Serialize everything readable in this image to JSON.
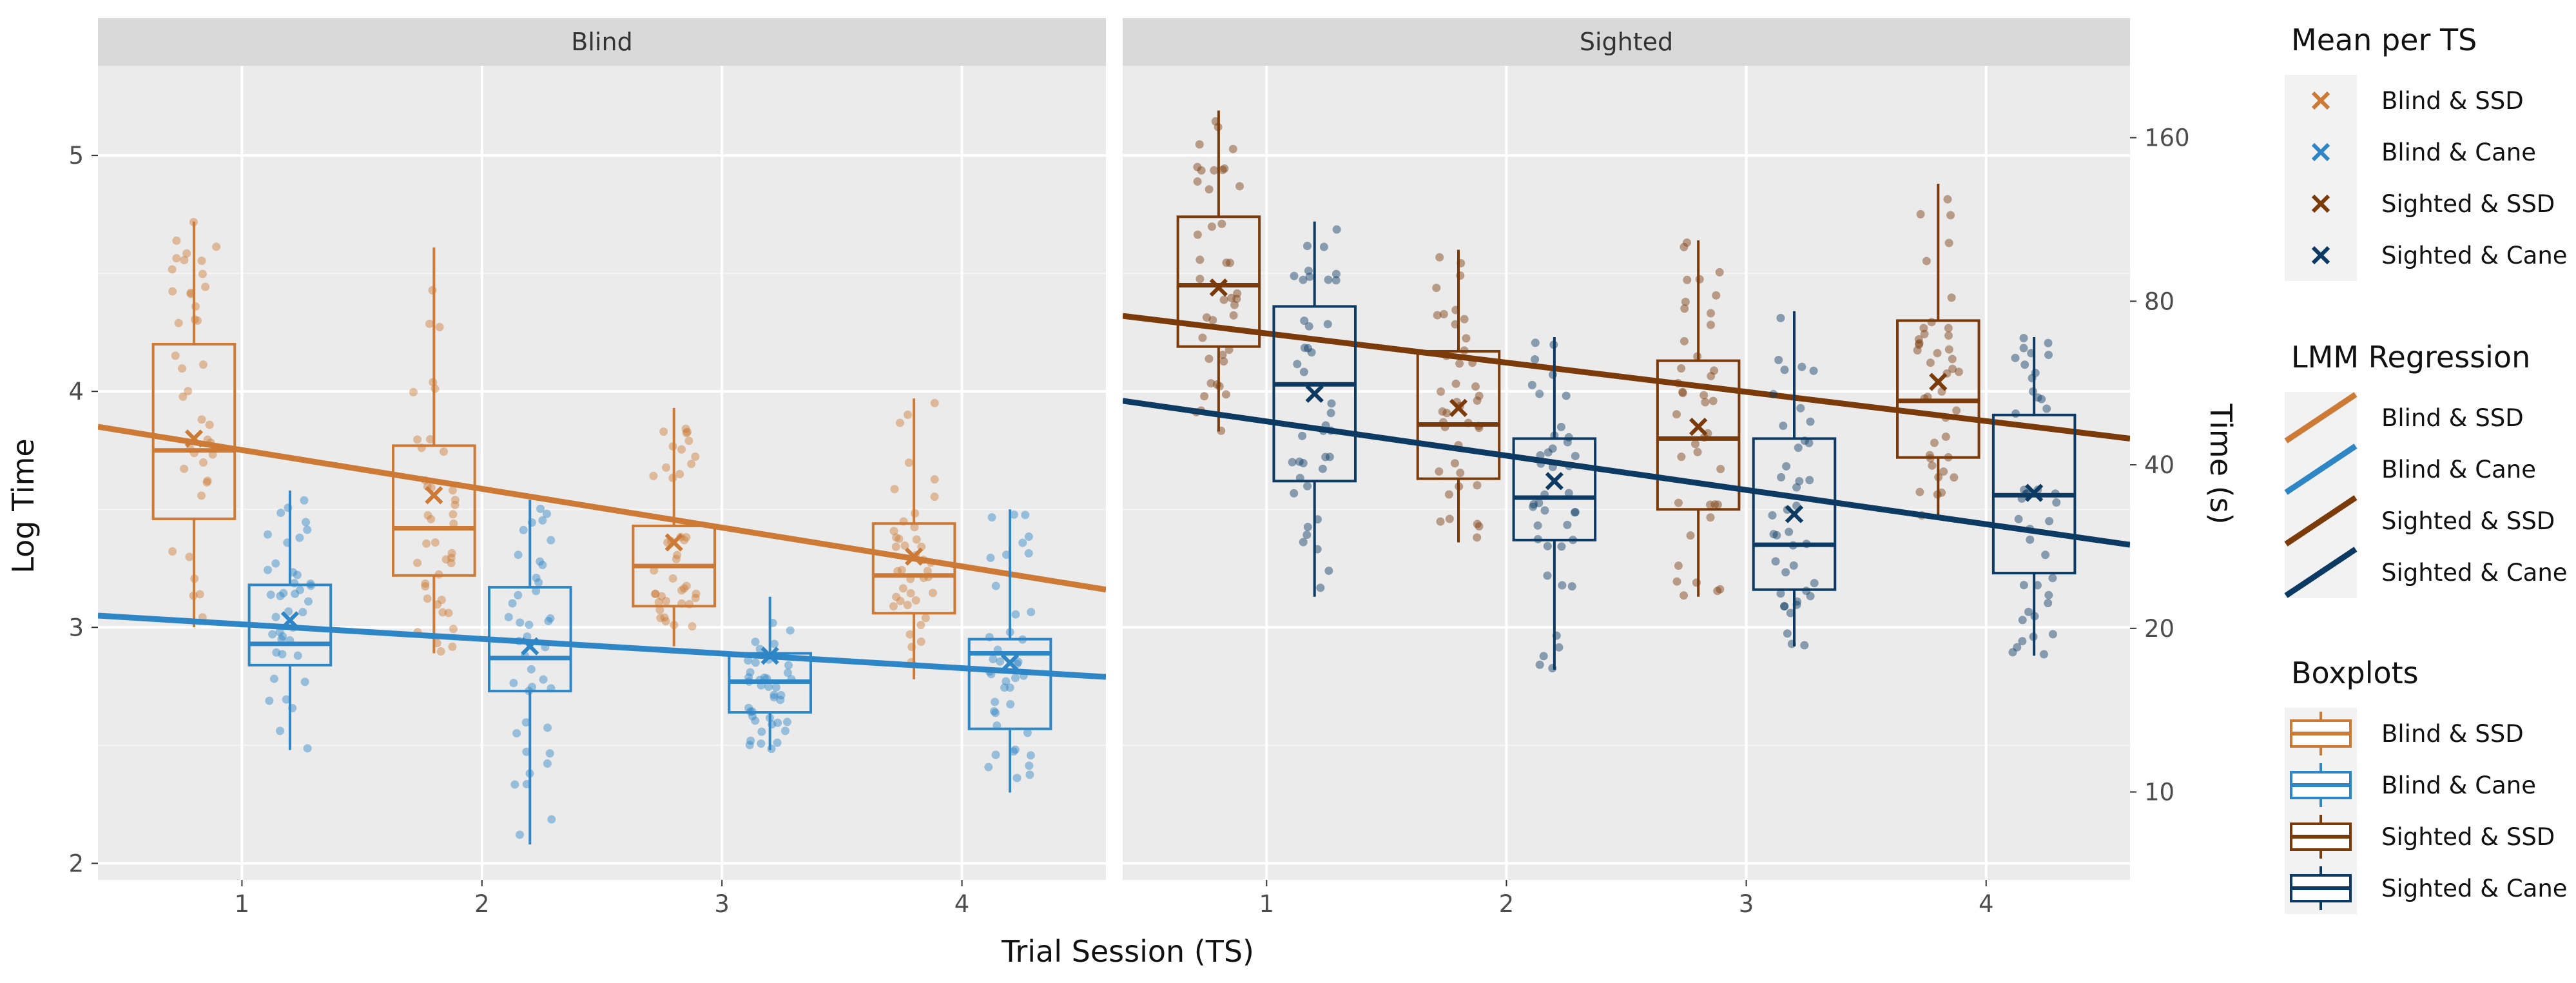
{
  "chart_data": {
    "type": "boxplot",
    "xlabel": "Trial Session (TS)",
    "ylabel": "Log Time",
    "y2label": "Time (s)",
    "ylim": [
      1.93,
      5.38
    ],
    "yticks": [
      "2",
      "3",
      "4",
      "5"
    ],
    "y2ticks": [
      "10",
      "20",
      "40",
      "80",
      "160"
    ],
    "xticks": [
      "1",
      "2",
      "3",
      "4"
    ],
    "colors": {
      "Blind & SSD": "#cc7a35",
      "Blind & Cane": "#2f86c6",
      "Sighted & SSD": "#7a3a0a",
      "Sighted & Cane": "#0c3a62"
    },
    "panels": [
      {
        "strip": "Blind",
        "groups": [
          {
            "series": "Blind & SSD",
            "offset": -0.2,
            "boxes": [
              {
                "ts": 1,
                "lw": 3.0,
                "q1": 3.46,
                "med": 3.75,
                "q3": 4.2,
                "uw": 4.72,
                "mean": 3.8
              },
              {
                "ts": 2,
                "lw": 2.89,
                "q1": 3.22,
                "med": 3.42,
                "q3": 3.77,
                "uw": 4.61,
                "mean": 3.56
              },
              {
                "ts": 3,
                "lw": 2.92,
                "q1": 3.09,
                "med": 3.26,
                "q3": 3.43,
                "uw": 3.93,
                "mean": 3.36
              },
              {
                "ts": 4,
                "lw": 2.78,
                "q1": 3.06,
                "med": 3.22,
                "q3": 3.44,
                "uw": 3.97,
                "mean": 3.3
              }
            ],
            "regression": {
              "x_start": 0.4,
              "y_start": 3.85,
              "x_end": 4.6,
              "y_end": 3.16
            }
          },
          {
            "series": "Blind & Cane",
            "offset": 0.2,
            "boxes": [
              {
                "ts": 1,
                "lw": 2.48,
                "q1": 2.84,
                "med": 2.93,
                "q3": 3.18,
                "uw": 3.58,
                "mean": 3.03
              },
              {
                "ts": 2,
                "lw": 2.08,
                "q1": 2.73,
                "med": 2.87,
                "q3": 3.17,
                "uw": 3.54,
                "mean": 2.92
              },
              {
                "ts": 3,
                "lw": 2.48,
                "q1": 2.64,
                "med": 2.77,
                "q3": 2.89,
                "uw": 3.13,
                "mean": 2.88
              },
              {
                "ts": 4,
                "lw": 2.3,
                "q1": 2.57,
                "med": 2.89,
                "q3": 2.95,
                "uw": 3.5,
                "mean": 2.85
              }
            ],
            "regression": {
              "x_start": 0.4,
              "y_start": 3.05,
              "x_end": 4.6,
              "y_end": 2.79
            }
          }
        ]
      },
      {
        "strip": "Sighted",
        "groups": [
          {
            "series": "Sighted & SSD",
            "offset": -0.2,
            "boxes": [
              {
                "ts": 1,
                "lw": 3.83,
                "q1": 4.19,
                "med": 4.45,
                "q3": 4.74,
                "uw": 5.19,
                "mean": 4.44
              },
              {
                "ts": 2,
                "lw": 3.36,
                "q1": 3.63,
                "med": 3.86,
                "q3": 4.17,
                "uw": 4.6,
                "mean": 3.93
              },
              {
                "ts": 3,
                "lw": 3.13,
                "q1": 3.5,
                "med": 3.8,
                "q3": 4.13,
                "uw": 4.64,
                "mean": 3.85
              },
              {
                "ts": 4,
                "lw": 3.47,
                "q1": 3.72,
                "med": 3.96,
                "q3": 4.3,
                "uw": 4.88,
                "mean": 4.04
              }
            ],
            "regression": {
              "x_start": 0.4,
              "y_start": 4.32,
              "x_end": 4.6,
              "y_end": 3.8
            }
          },
          {
            "series": "Sighted & Cane",
            "offset": 0.2,
            "boxes": [
              {
                "ts": 1,
                "lw": 3.13,
                "q1": 3.62,
                "med": 4.03,
                "q3": 4.36,
                "uw": 4.72,
                "mean": 3.99
              },
              {
                "ts": 2,
                "lw": 2.82,
                "q1": 3.37,
                "med": 3.55,
                "q3": 3.8,
                "uw": 4.23,
                "mean": 3.62
              },
              {
                "ts": 3,
                "lw": 2.92,
                "q1": 3.16,
                "med": 3.35,
                "q3": 3.8,
                "uw": 4.34,
                "mean": 3.48
              },
              {
                "ts": 4,
                "lw": 2.88,
                "q1": 3.23,
                "med": 3.56,
                "q3": 3.9,
                "uw": 4.23,
                "mean": 3.57
              }
            ],
            "regression": {
              "x_start": 0.4,
              "y_start": 3.96,
              "x_end": 4.6,
              "y_end": 3.35
            }
          }
        ]
      }
    ],
    "legend": {
      "position": "right",
      "sections": [
        {
          "title": "Mean per TS",
          "kind": "mean",
          "entries": [
            "Blind & SSD",
            "Blind & Cane",
            "Sighted & SSD",
            "Sighted & Cane"
          ]
        },
        {
          "title": "LMM Regression",
          "kind": "line",
          "entries": [
            "Blind & SSD",
            "Blind & Cane",
            "Sighted & SSD",
            "Sighted & Cane"
          ]
        },
        {
          "title": "Boxplots",
          "kind": "box",
          "entries": [
            "Blind & SSD",
            "Blind & Cane",
            "Sighted & SSD",
            "Sighted & Cane"
          ]
        }
      ]
    }
  }
}
